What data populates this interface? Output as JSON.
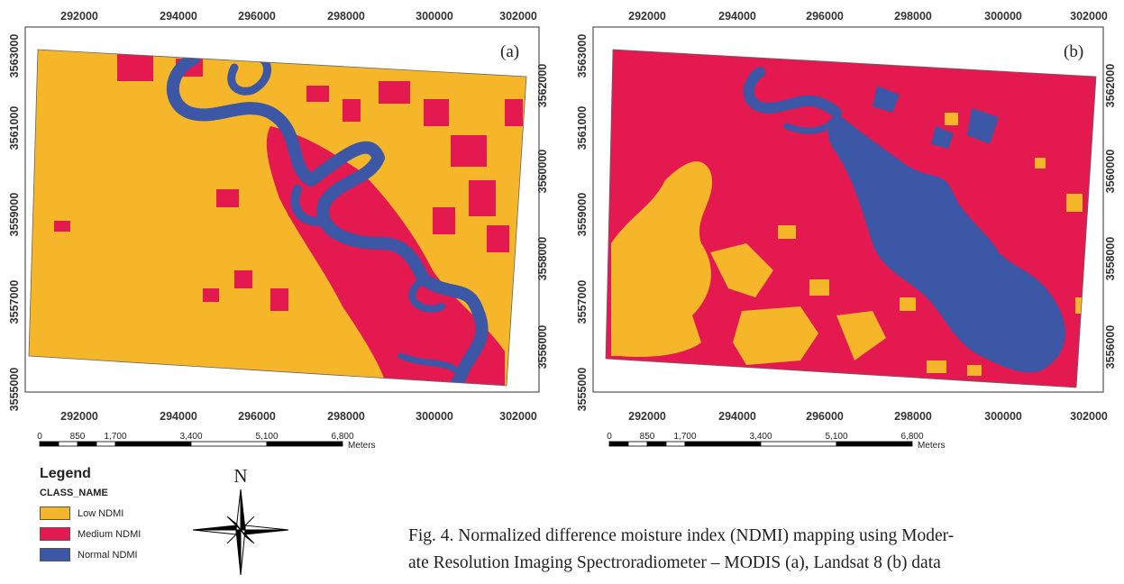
{
  "maps": [
    {
      "id": "a",
      "panel_label": "(a)",
      "x_ticks": [
        "292000",
        "294000",
        "296000",
        "298000",
        "300000",
        "302000"
      ],
      "y_ticks": [
        "3563000",
        "3561000",
        "3559000",
        "3557000",
        "3555000"
      ],
      "y_ticks_right": [
        "3562000",
        "3560000",
        "3558000",
        "3556000"
      ],
      "background_class": "Low NDMI",
      "scale_labels": [
        "0",
        "850",
        "1,700",
        "3,400",
        "5,100",
        "6,800"
      ],
      "scale_unit": "Meters"
    },
    {
      "id": "b",
      "panel_label": "(b)",
      "x_ticks": [
        "292000",
        "294000",
        "296000",
        "298000",
        "300000",
        "302000"
      ],
      "y_ticks": [
        "3563000",
        "3561000",
        "3559000",
        "3557000",
        "3555000"
      ],
      "y_ticks_right": [
        "3562000",
        "3560000",
        "3558000",
        "3556000"
      ],
      "background_class": "Medium NDMI",
      "scale_labels": [
        "0",
        "850",
        "1,700",
        "3,400",
        "5,100",
        "6,800"
      ],
      "scale_unit": "Meters"
    }
  ],
  "legend": {
    "title": "Legend",
    "field": "CLASS_NAME",
    "items": [
      {
        "label": "Low NDMI",
        "color": "#f6b629"
      },
      {
        "label": "Medium NDMI",
        "color": "#e3194f"
      },
      {
        "label": "Normal NDMI",
        "color": "#3b57a6"
      }
    ]
  },
  "north_arrow": {
    "label": "N",
    "icon": "compass-rose-icon"
  },
  "caption": {
    "line1": "Fig. 4. Normalized difference moisture index (NDMI) mapping using Moder-",
    "line2": "ate Resolution Imaging Spectroradiometer – MODIS (a), Landsat 8 (b) data"
  }
}
